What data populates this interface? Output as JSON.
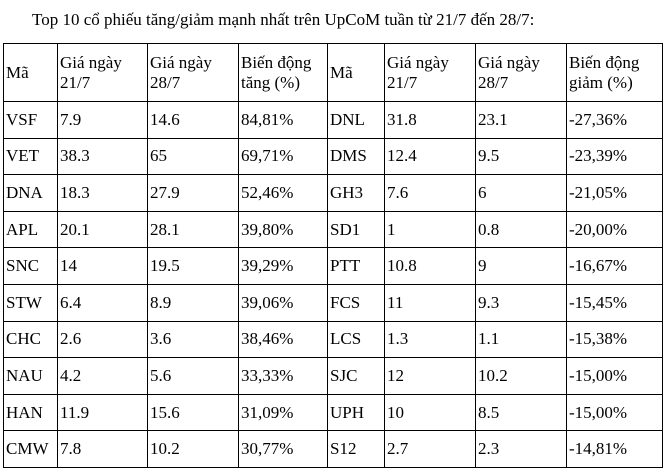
{
  "title": "Top 10 cổ phiếu tăng/giảm mạnh nhất trên UpCoM tuần từ 21/7 đến 28/7:",
  "headers": [
    {
      "l1": "Mã",
      "l2": ""
    },
    {
      "l1": "Giá ngày",
      "l2": "21/7"
    },
    {
      "l1": "Giá ngày",
      "l2": "28/7"
    },
    {
      "l1": "Biến động",
      "l2": "tăng (%)"
    },
    {
      "l1": "Mã",
      "l2": ""
    },
    {
      "l1": "Giá ngày",
      "l2": "21/7"
    },
    {
      "l1": "Giá ngày",
      "l2": "28/7"
    },
    {
      "l1": "Biến động",
      "l2": "giảm (%)"
    }
  ],
  "rows": [
    [
      "VSF",
      "7.9",
      "14.6",
      "84,81%",
      "DNL",
      "31.8",
      "23.1",
      "-27,36%"
    ],
    [
      "VET",
      "38.3",
      "65",
      "69,71%",
      "DMS",
      "12.4",
      "9.5",
      "-23,39%"
    ],
    [
      "DNA",
      "18.3",
      "27.9",
      "52,46%",
      "GH3",
      "7.6",
      "6",
      "-21,05%"
    ],
    [
      "APL",
      "20.1",
      "28.1",
      "39,80%",
      "SD1",
      "1",
      "0.8",
      "-20,00%"
    ],
    [
      "SNC",
      "14",
      "19.5",
      "39,29%",
      "PTT",
      "10.8",
      "9",
      "-16,67%"
    ],
    [
      "STW",
      "6.4",
      "8.9",
      "39,06%",
      "FCS",
      "11",
      "9.3",
      "-15,45%"
    ],
    [
      "CHC",
      "2.6",
      "3.6",
      "38,46%",
      "LCS",
      "1.3",
      "1.1",
      "-15,38%"
    ],
    [
      "NAU",
      "4.2",
      "5.6",
      "33,33%",
      "SJC",
      "12",
      "10.2",
      "-15,00%"
    ],
    [
      "HAN",
      "11.9",
      "15.6",
      "31,09%",
      "UPH",
      "10",
      "8.5",
      "-15,00%"
    ],
    [
      "CMW",
      "7.8",
      "10.2",
      "30,77%",
      "S12",
      "2.7",
      "2.3",
      "-14,81%"
    ]
  ]
}
